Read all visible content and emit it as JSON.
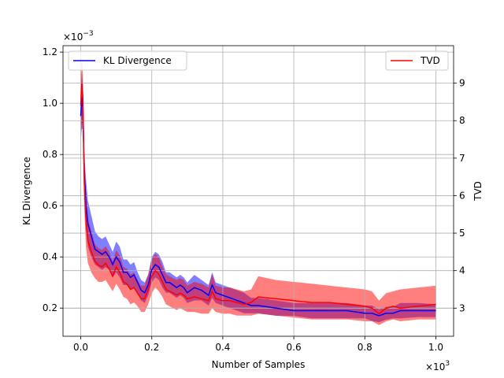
{
  "chart_data": {
    "type": "line",
    "xlabel": "Number of Samples",
    "x_multiplier": "×10",
    "x_multiplier_exp": "3",
    "xlim": [
      -0.05,
      1.05
    ],
    "x_ticks": [
      0.0,
      0.2,
      0.4,
      0.6,
      0.8,
      1.0
    ],
    "x_tick_labels": [
      "0.0",
      "0.2",
      "0.4",
      "0.6",
      "0.8",
      "1.0"
    ],
    "left_axis": {
      "label": "KL Divergence",
      "multiplier": "×10",
      "multiplier_exp": "−3",
      "ylim": [
        0.09,
        1.225
      ],
      "ticks": [
        0.2,
        0.4,
        0.6,
        0.8,
        1.0,
        1.2
      ],
      "tick_labels": [
        "0.2",
        "0.4",
        "0.6",
        "0.8",
        "1.0",
        "1.2"
      ]
    },
    "right_axis": {
      "label": "TVD",
      "ylim": [
        2.25,
        10.0
      ],
      "ticks": [
        3,
        4,
        5,
        6,
        7,
        8,
        9
      ],
      "tick_labels": [
        "3",
        "4",
        "5",
        "6",
        "7",
        "8",
        "9"
      ]
    },
    "grid": true,
    "legends": [
      {
        "position": "top-left",
        "label": "KL Divergence",
        "color": "#0000ff"
      },
      {
        "position": "top-right",
        "label": "TVD",
        "color": "#ff0000"
      }
    ],
    "series": [
      {
        "name": "KL Divergence",
        "axis": "left",
        "color": "#0000ff",
        "x": [
          0.0,
          0.003,
          0.006,
          0.008,
          0.01,
          0.015,
          0.02,
          0.03,
          0.04,
          0.05,
          0.06,
          0.07,
          0.08,
          0.09,
          0.1,
          0.11,
          0.12,
          0.13,
          0.14,
          0.15,
          0.16,
          0.17,
          0.18,
          0.19,
          0.2,
          0.21,
          0.22,
          0.23,
          0.24,
          0.25,
          0.26,
          0.27,
          0.28,
          0.29,
          0.3,
          0.32,
          0.34,
          0.36,
          0.37,
          0.38,
          0.4,
          0.42,
          0.44,
          0.46,
          0.48,
          0.5,
          0.55,
          0.6,
          0.65,
          0.7,
          0.75,
          0.8,
          0.82,
          0.84,
          0.86,
          0.88,
          0.9,
          0.95,
          1.0
        ],
        "mean": [
          0.95,
          1.02,
          0.98,
          0.85,
          0.72,
          0.6,
          0.53,
          0.48,
          0.43,
          0.42,
          0.41,
          0.42,
          0.4,
          0.37,
          0.4,
          0.38,
          0.34,
          0.34,
          0.32,
          0.33,
          0.3,
          0.27,
          0.26,
          0.29,
          0.35,
          0.37,
          0.36,
          0.33,
          0.3,
          0.3,
          0.29,
          0.28,
          0.29,
          0.28,
          0.26,
          0.28,
          0.27,
          0.25,
          0.29,
          0.26,
          0.25,
          0.24,
          0.23,
          0.22,
          0.21,
          0.21,
          0.2,
          0.19,
          0.19,
          0.19,
          0.19,
          0.18,
          0.18,
          0.17,
          0.18,
          0.18,
          0.19,
          0.19,
          0.19
        ],
        "lower": [
          0.85,
          0.9,
          0.9,
          0.75,
          0.64,
          0.5,
          0.44,
          0.4,
          0.37,
          0.36,
          0.35,
          0.36,
          0.35,
          0.32,
          0.34,
          0.32,
          0.29,
          0.29,
          0.27,
          0.28,
          0.26,
          0.23,
          0.22,
          0.25,
          0.3,
          0.32,
          0.31,
          0.28,
          0.26,
          0.26,
          0.25,
          0.24,
          0.25,
          0.24,
          0.22,
          0.23,
          0.23,
          0.21,
          0.24,
          0.22,
          0.21,
          0.2,
          0.19,
          0.18,
          0.18,
          0.18,
          0.17,
          0.17,
          0.16,
          0.16,
          0.16,
          0.16,
          0.15,
          0.145,
          0.155,
          0.16,
          0.16,
          0.165,
          0.165
        ],
        "upper": [
          1.05,
          1.12,
          1.07,
          0.95,
          0.8,
          0.7,
          0.62,
          0.56,
          0.5,
          0.48,
          0.47,
          0.48,
          0.45,
          0.42,
          0.46,
          0.44,
          0.39,
          0.39,
          0.37,
          0.38,
          0.34,
          0.31,
          0.3,
          0.33,
          0.4,
          0.42,
          0.41,
          0.38,
          0.34,
          0.34,
          0.33,
          0.32,
          0.33,
          0.32,
          0.3,
          0.33,
          0.31,
          0.29,
          0.34,
          0.3,
          0.29,
          0.28,
          0.27,
          0.26,
          0.24,
          0.24,
          0.23,
          0.22,
          0.22,
          0.22,
          0.22,
          0.21,
          0.21,
          0.195,
          0.205,
          0.205,
          0.22,
          0.22,
          0.215
        ]
      },
      {
        "name": "TVD",
        "axis": "right",
        "color": "#ff0000",
        "x": [
          0.0,
          0.003,
          0.006,
          0.008,
          0.01,
          0.015,
          0.02,
          0.03,
          0.04,
          0.05,
          0.06,
          0.07,
          0.08,
          0.09,
          0.1,
          0.11,
          0.12,
          0.13,
          0.14,
          0.15,
          0.16,
          0.17,
          0.18,
          0.19,
          0.2,
          0.21,
          0.22,
          0.23,
          0.24,
          0.25,
          0.26,
          0.27,
          0.28,
          0.29,
          0.3,
          0.32,
          0.34,
          0.36,
          0.37,
          0.38,
          0.4,
          0.42,
          0.44,
          0.46,
          0.48,
          0.5,
          0.55,
          0.6,
          0.65,
          0.7,
          0.75,
          0.8,
          0.82,
          0.84,
          0.86,
          0.88,
          0.9,
          0.95,
          1.0
        ],
        "mean": [
          8.4,
          9.0,
          8.6,
          7.3,
          6.3,
          5.3,
          4.8,
          4.5,
          4.25,
          4.15,
          4.1,
          4.2,
          4.05,
          3.85,
          4.1,
          3.95,
          3.7,
          3.65,
          3.5,
          3.55,
          3.4,
          3.25,
          3.25,
          3.5,
          3.85,
          4.0,
          3.9,
          3.7,
          3.5,
          3.45,
          3.4,
          3.35,
          3.4,
          3.35,
          3.25,
          3.3,
          3.25,
          3.2,
          3.45,
          3.25,
          3.2,
          3.2,
          3.15,
          3.1,
          3.15,
          3.3,
          3.25,
          3.2,
          3.15,
          3.15,
          3.1,
          3.05,
          3.0,
          2.85,
          3.0,
          3.05,
          3.0,
          3.05,
          3.1
        ],
        "lower": [
          7.5,
          8.0,
          7.8,
          6.5,
          5.6,
          4.6,
          4.2,
          3.95,
          3.8,
          3.7,
          3.7,
          3.75,
          3.6,
          3.45,
          3.65,
          3.5,
          3.3,
          3.25,
          3.1,
          3.15,
          3.05,
          2.9,
          2.9,
          3.1,
          3.4,
          3.55,
          3.45,
          3.3,
          3.1,
          3.05,
          3.0,
          2.95,
          3.0,
          2.95,
          2.9,
          2.9,
          2.85,
          2.85,
          3.0,
          2.9,
          2.85,
          2.85,
          2.8,
          2.8,
          2.8,
          2.85,
          2.8,
          2.75,
          2.7,
          2.7,
          2.7,
          2.65,
          2.65,
          2.55,
          2.65,
          2.7,
          2.65,
          2.7,
          2.7
        ],
        "upper": [
          9.0,
          9.7,
          9.2,
          8.1,
          7.0,
          6.0,
          5.4,
          5.05,
          4.7,
          4.6,
          4.55,
          4.65,
          4.5,
          4.25,
          4.55,
          4.4,
          4.1,
          4.05,
          3.9,
          3.95,
          3.75,
          3.6,
          3.6,
          3.9,
          4.3,
          4.45,
          4.35,
          4.1,
          3.9,
          3.85,
          3.8,
          3.75,
          3.8,
          3.75,
          3.6,
          3.7,
          3.65,
          3.55,
          3.9,
          3.6,
          3.55,
          3.55,
          3.5,
          3.45,
          3.5,
          3.85,
          3.75,
          3.7,
          3.65,
          3.6,
          3.55,
          3.5,
          3.45,
          3.2,
          3.4,
          3.45,
          3.5,
          3.55,
          3.6
        ]
      }
    ]
  }
}
